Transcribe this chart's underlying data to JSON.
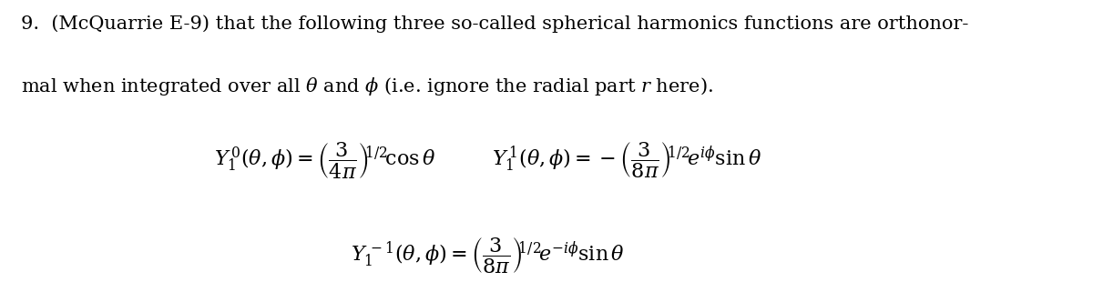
{
  "figsize": [
    12.0,
    3.1
  ],
  "dpi": 100,
  "background_color": "#ffffff",
  "text_color": "#000000",
  "line1": "9.\\;\\;(\\mathrm{McQuarrie\\;E\\text{-}9})\\;\\mathrm{that\\;the\\;following\\;three\\;so\\text{-}called\\;spherical\\;harmonics\\;functions\\;are\\;orthonor\\text{-}}",
  "line2": "\\mathrm{mal\\;when\\;integrated\\;over\\;all}\\;\\theta\\;\\mathrm{and}\\;\\phi\\;\\mathrm{(i.e.\\;ignore\\;the\\;radial\\;part}\\;r\\;\\mathrm{here).}",
  "eq1": "Y_1^{\\,0}(\\theta,\\phi) = \\left(\\dfrac{3}{4\\pi}\\right)^{\\!1/2}\\!\\cos\\theta",
  "eq2": "Y_1^{\\,1}(\\theta,\\phi) = -\\left(\\dfrac{3}{8\\pi}\\right)^{\\!1/2}\\!e^{i\\phi}\\sin\\theta",
  "eq3": "Y_1^{\\,-1}(\\theta,\\phi) = \\left(\\dfrac{3}{8\\pi}\\right)^{\\!1/2}\\!e^{-i\\phi}\\sin\\theta",
  "fontsize_text": 15,
  "fontsize_eq": 16
}
